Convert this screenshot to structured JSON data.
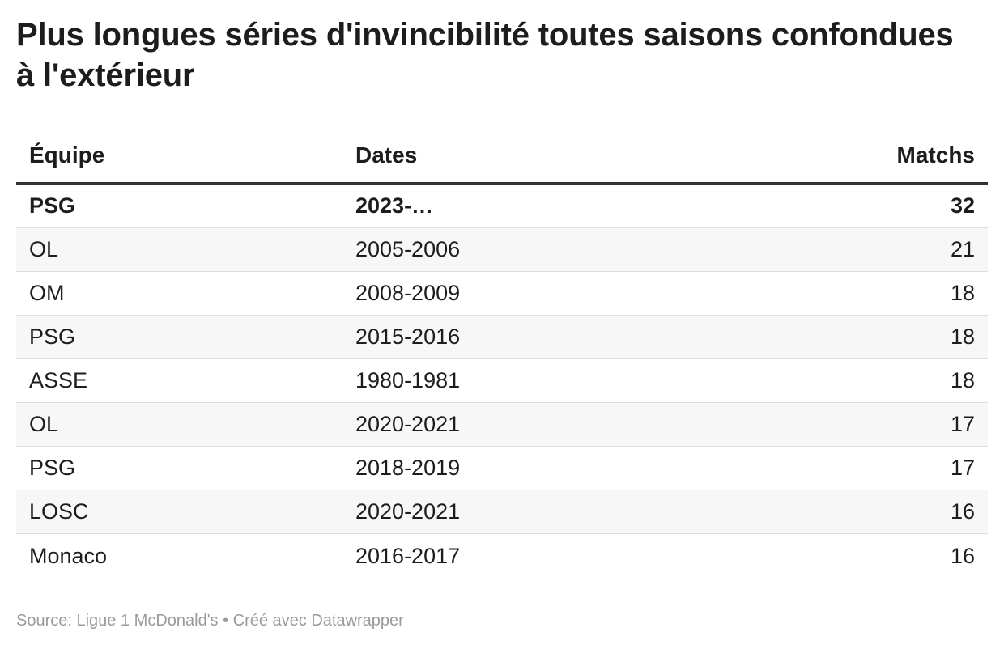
{
  "title": "Plus longues séries d'invincibilité toutes saisons confondues à l'extérieur",
  "footer": "Source: Ligue 1 McDonald's • Créé avec Datawrapper",
  "chart_data": {
    "type": "table",
    "title": "Plus longues séries d'invincibilité toutes saisons confondues à l'extérieur",
    "columns": [
      "Équipe",
      "Dates",
      "Matchs"
    ],
    "rows": [
      {
        "team": "PSG",
        "dates": "2023-…",
        "matches": "32",
        "highlight": true
      },
      {
        "team": "OL",
        "dates": "2005-2006",
        "matches": "21",
        "highlight": false
      },
      {
        "team": "OM",
        "dates": "2008-2009",
        "matches": "18",
        "highlight": false
      },
      {
        "team": "PSG",
        "dates": "2015-2016",
        "matches": "18",
        "highlight": false
      },
      {
        "team": "ASSE",
        "dates": "1980-1981",
        "matches": "18",
        "highlight": false
      },
      {
        "team": "OL",
        "dates": "2020-2021",
        "matches": "17",
        "highlight": false
      },
      {
        "team": "PSG",
        "dates": "2018-2019",
        "matches": "17",
        "highlight": false
      },
      {
        "team": "LOSC",
        "dates": "2020-2021",
        "matches": "16",
        "highlight": false
      },
      {
        "team": "Monaco",
        "dates": "2016-2017",
        "matches": "16",
        "highlight": false
      }
    ],
    "source": "Source: Ligue 1 McDonald's • Créé avec Datawrapper"
  }
}
